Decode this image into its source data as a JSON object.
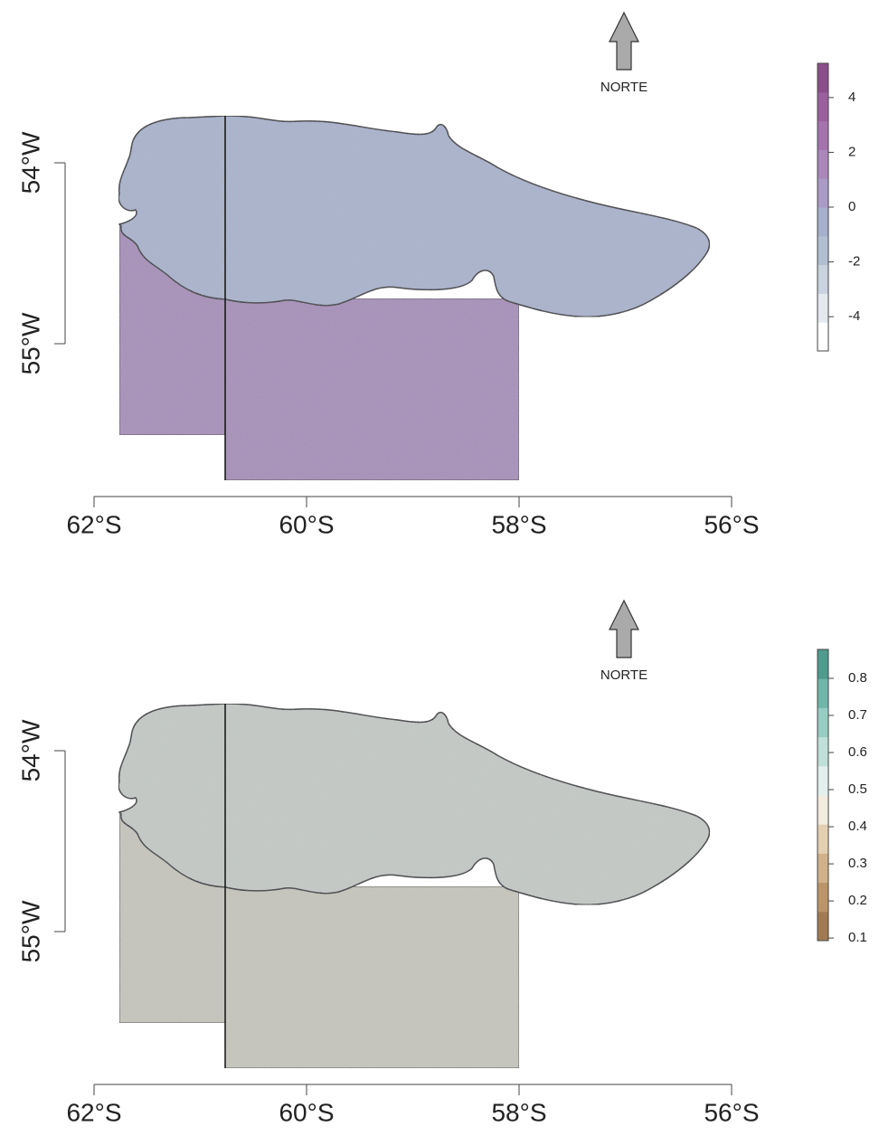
{
  "panels": [
    {
      "north_label": "NORTE",
      "xlim": [
        62,
        56
      ],
      "xticks": [
        {
          "value": 62,
          "label": "62°S"
        },
        {
          "value": 60,
          "label": "60°S"
        },
        {
          "value": 58,
          "label": "58°S"
        },
        {
          "value": 56,
          "label": "56°S"
        }
      ],
      "ylim": [
        54,
        55
      ],
      "yticks": [
        {
          "value": 54,
          "label": "54°W"
        },
        {
          "value": 55,
          "label": "55°W"
        }
      ],
      "colorbar": {
        "range": [
          -5.25,
          5.25
        ],
        "ticks": [
          -4,
          -2,
          0,
          2,
          4
        ],
        "colors": [
          "#ffffff",
          "#e4e9ef",
          "#c9d2de",
          "#b2bed2",
          "#a6afcb",
          "#a99bc5",
          "#aa86bb",
          "#a472ad",
          "#9a5f9e",
          "#8b4e8b"
        ]
      },
      "fill_upper": "#a8b3cd",
      "fill_lower": "#a58ab8"
    },
    {
      "north_label": "NORTE",
      "xlim": [
        62,
        56
      ],
      "xticks": [
        {
          "value": 62,
          "label": "62°S"
        },
        {
          "value": 60,
          "label": "60°S"
        },
        {
          "value": 58,
          "label": "58°S"
        },
        {
          "value": 56,
          "label": "56°S"
        }
      ],
      "ylim": [
        54,
        55
      ],
      "yticks": [
        {
          "value": 54,
          "label": "54°W"
        },
        {
          "value": 55,
          "label": "55°W"
        }
      ],
      "colorbar": {
        "range": [
          0.093,
          0.878
        ],
        "ticks": [
          0.1,
          0.2,
          0.3,
          0.4,
          0.5,
          0.6,
          0.7,
          0.8
        ],
        "colors": [
          "#a27a52",
          "#bb9468",
          "#d0b188",
          "#e4d0b0",
          "#f2ebe0",
          "#e2efec",
          "#bfe0d9",
          "#96cdc3",
          "#6fb7a9",
          "#4e9c8d"
        ]
      },
      "fill_upper": "#c5cbc6",
      "fill_lower": "#c7c7bb"
    }
  ]
}
